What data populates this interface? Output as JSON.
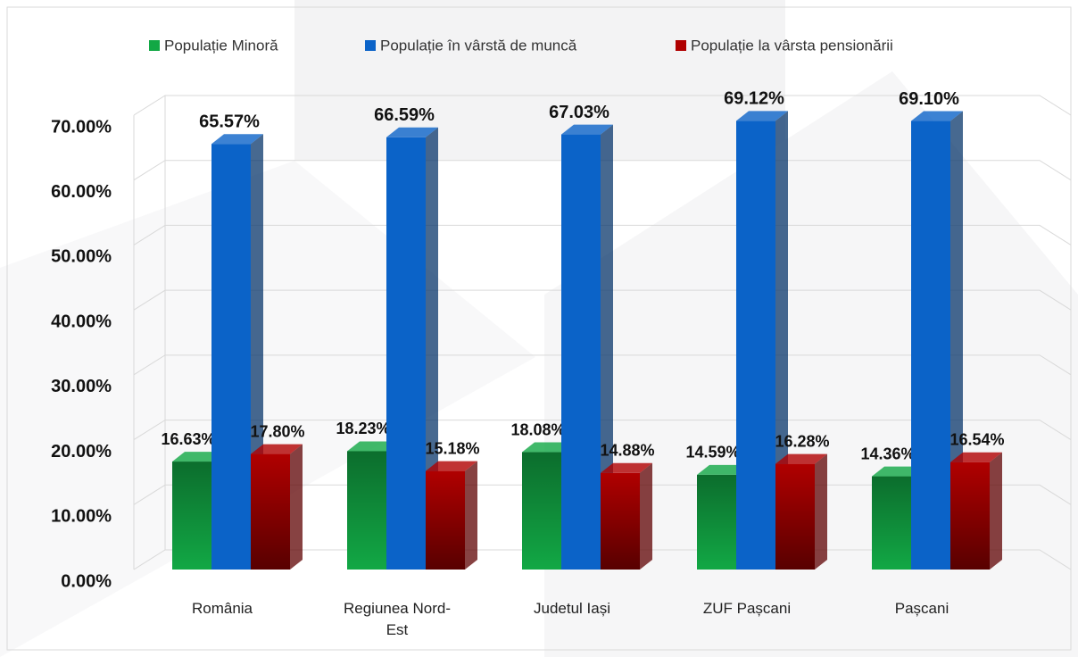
{
  "chart_data": {
    "type": "bar3d",
    "categories": [
      "România",
      "Regiunea Nord-Est",
      "Judetul Iași",
      "ZUF Pașcani",
      "Pașcani"
    ],
    "series": [
      {
        "name": "Populație Minoră",
        "color": "#12a845",
        "values": [
          16.63,
          18.23,
          18.08,
          14.59,
          14.36
        ],
        "value_labels": [
          "16.63%",
          "18.23%",
          "18.08%",
          "14.59%",
          "14.36%"
        ]
      },
      {
        "name": "Populație în vârstă de muncă",
        "color": "#0b63c8",
        "values": [
          65.57,
          66.59,
          67.03,
          69.12,
          69.1
        ],
        "value_labels": [
          "65.57%",
          "66.59%",
          "67.03%",
          "69.12%",
          "69.10%"
        ]
      },
      {
        "name": "Populație la vârsta pensionării",
        "color": "#b00000",
        "values": [
          17.8,
          15.18,
          14.88,
          16.28,
          16.54
        ],
        "value_labels": [
          "17.80%",
          "15.18%",
          "14.88%",
          "16.28%",
          "16.54%"
        ]
      }
    ],
    "ylim": [
      0,
      70
    ],
    "yticks": [
      {
        "value": 0,
        "label": "0.00%"
      },
      {
        "value": 10,
        "label": "10.00%"
      },
      {
        "value": 20,
        "label": "20.00%"
      },
      {
        "value": 30,
        "label": "30.00%"
      },
      {
        "value": 40,
        "label": "40.00%"
      },
      {
        "value": 50,
        "label": "50.00%"
      },
      {
        "value": 60,
        "label": "60.00%"
      },
      {
        "value": 70,
        "label": "70.00%"
      }
    ],
    "grid": true,
    "legend": "top"
  }
}
